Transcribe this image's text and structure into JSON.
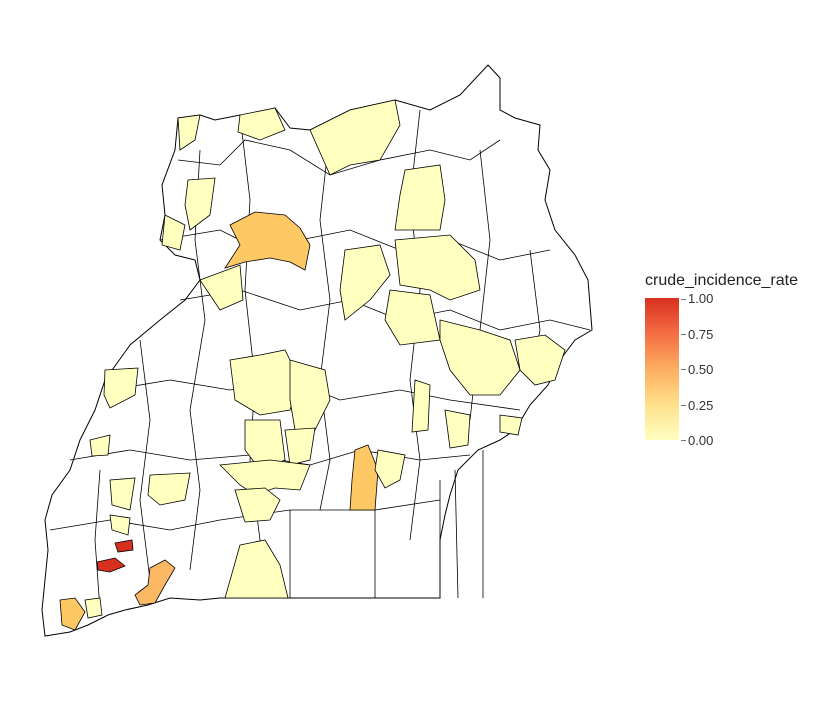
{
  "legend": {
    "title": "crude_incidence_rate",
    "ticks": [
      "1.00",
      "0.75",
      "0.50",
      "0.25",
      "0.00"
    ]
  },
  "colors": {
    "high": "#d7301f",
    "mid_high": "#f46d43",
    "mid": "#fdae61",
    "low": "#fee08b",
    "lowest": "#ffffbf",
    "none": "#ffffff",
    "border": "#000000"
  }
}
